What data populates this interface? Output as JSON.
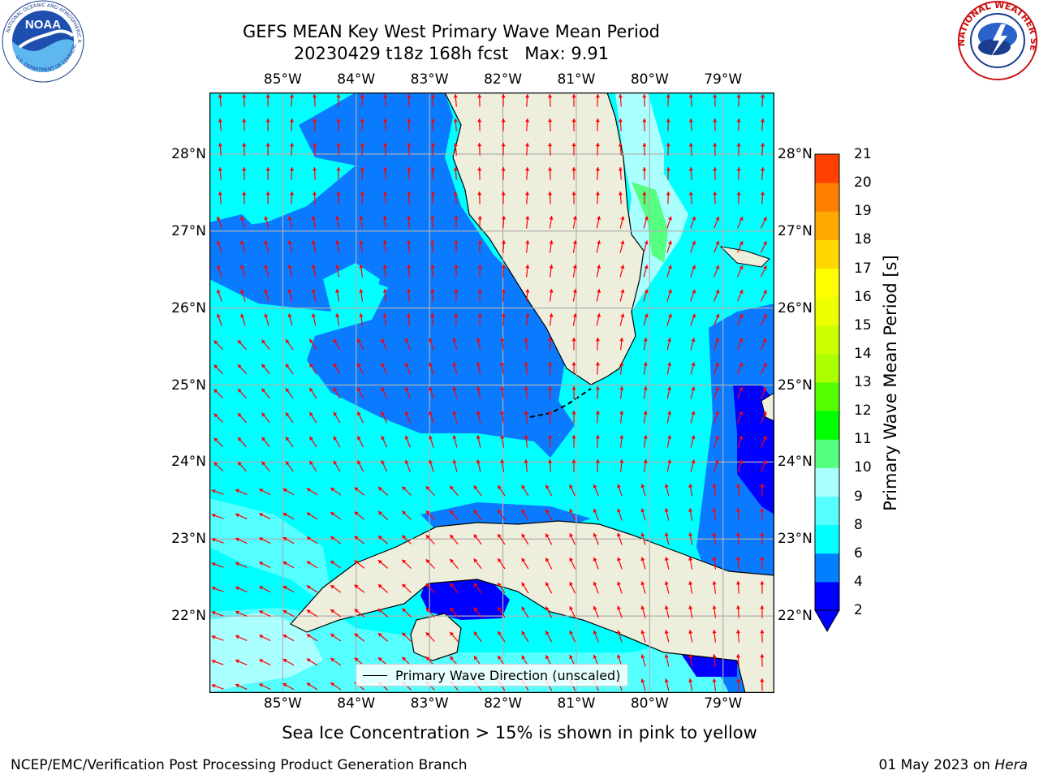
{
  "header": {
    "title": "GEFS MEAN Key West Primary Wave Mean Period",
    "subtitle": "20230429 t18z 168h fcst   Max: 9.91"
  },
  "map": {
    "lon_labels": [
      "85°W",
      "84°W",
      "83°W",
      "82°W",
      "81°W",
      "80°W",
      "79°W"
    ],
    "lat_labels": [
      "28°N",
      "27°N",
      "26°N",
      "25°N",
      "24°N",
      "23°N",
      "22°N"
    ],
    "lon_range": [
      -86,
      -78.3
    ],
    "lat_range": [
      21,
      28.8
    ],
    "colors": {
      "ocean_light": "#00ffff",
      "ocean_mid": "#007bff",
      "ocean_dark": "#0000ff",
      "land": "#eeeedd",
      "grid": "#b0b0b0",
      "arrow": "#ff0000"
    },
    "legend_label": "Primary Wave Direction (unscaled)"
  },
  "colorbar": {
    "ticks": [
      "2",
      "4",
      "6",
      "8",
      "9",
      "10",
      "11",
      "12",
      "13",
      "14",
      "15",
      "16",
      "17",
      "18",
      "19",
      "20",
      "21"
    ],
    "label": "Primary Wave Mean Period [s]",
    "colors": [
      "#0000ff",
      "#0080ff",
      "#00ffff",
      "#55ffff",
      "#aaffff",
      "#55ff80",
      "#00ff00",
      "#55ff00",
      "#aaff00",
      "#ccff00",
      "#eeff00",
      "#ffff00",
      "#ffd700",
      "#ffaa00",
      "#ff8000",
      "#ff4000",
      "#ff0000"
    ]
  },
  "note": "Sea Ice Concentration > 15% is shown in pink to yellow",
  "footer": {
    "left": "NCEP/EMC/Verification Post Processing Product Generation Branch",
    "date": "01 May 2023 on ",
    "machine": "Hera"
  },
  "logos": {
    "left": "NOAA",
    "right": "NATIONAL WEATHER SERVICE"
  }
}
